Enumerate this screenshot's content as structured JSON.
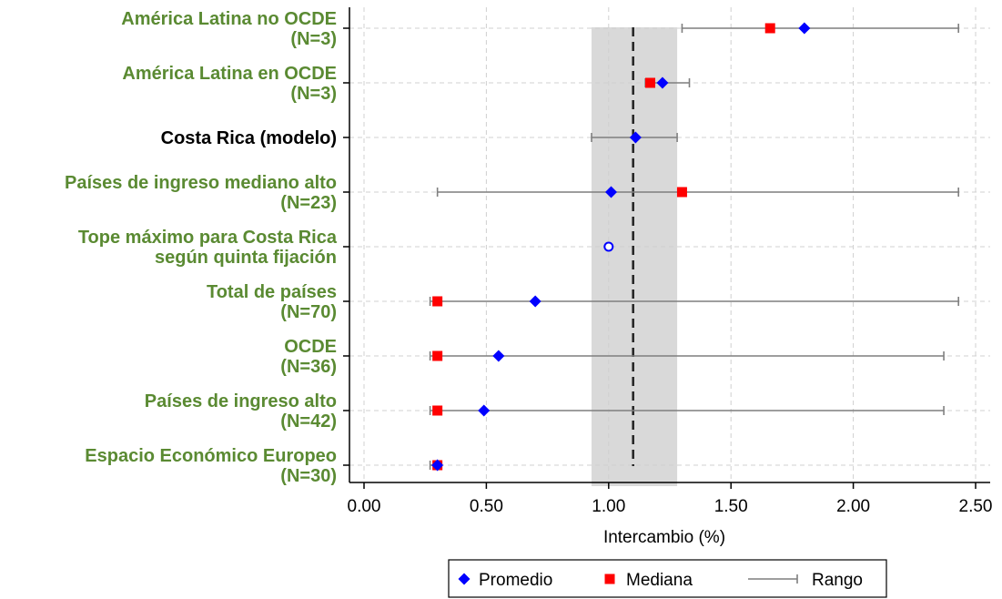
{
  "chart_data": {
    "type": "scatter",
    "orientation": "horizontal-dot-range",
    "xlabel": "Intercambio (%)",
    "xlim": [
      0.0,
      2.5
    ],
    "xticks": [
      "0.00",
      "0.50",
      "1.00",
      "1.50",
      "2.00",
      "2.50"
    ],
    "xtick_values": [
      0,
      0.5,
      1.0,
      1.5,
      2.0,
      2.5
    ],
    "grid": true,
    "reference_line": 1.1,
    "shaded_band": [
      0.93,
      1.28
    ],
    "colors": {
      "promedio": "#0000ff",
      "mediana": "#ff0000",
      "rango": "#7f7f7f",
      "band": "#d9d9d9",
      "label": "#5a8a32",
      "label_highlight": "#000000"
    },
    "categories": [
      {
        "lines": [
          "América Latina no OCDE",
          "(N=3)"
        ],
        "highlight": false,
        "promedio": 1.8,
        "mediana": 1.66,
        "range": [
          1.3,
          2.43
        ]
      },
      {
        "lines": [
          "América Latina en OCDE",
          "(N=3)"
        ],
        "highlight": false,
        "promedio": 1.22,
        "mediana": 1.17,
        "range": [
          1.15,
          1.33
        ]
      },
      {
        "lines": [
          "Costa Rica (modelo)"
        ],
        "highlight": true,
        "promedio": 1.11,
        "mediana": null,
        "range": [
          0.93,
          1.28
        ]
      },
      {
        "lines": [
          "Países de ingreso mediano alto",
          "(N=23)"
        ],
        "highlight": false,
        "promedio": 1.01,
        "mediana": 1.3,
        "range": [
          0.3,
          2.43
        ]
      },
      {
        "lines": [
          "Tope máximo para Costa Rica",
          "según quinta fijación"
        ],
        "highlight": false,
        "promedio": null,
        "mediana": null,
        "tope": 1.0,
        "range": null
      },
      {
        "lines": [
          "Total de países",
          "(N=70)"
        ],
        "highlight": false,
        "promedio": 0.7,
        "mediana": 0.3,
        "range": [
          0.27,
          2.43
        ]
      },
      {
        "lines": [
          "OCDE",
          "(N=36)"
        ],
        "highlight": false,
        "promedio": 0.55,
        "mediana": 0.3,
        "range": [
          0.27,
          2.37
        ]
      },
      {
        "lines": [
          "Países de ingreso alto",
          "(N=42)"
        ],
        "highlight": false,
        "promedio": 0.49,
        "mediana": 0.3,
        "range": [
          0.27,
          2.37
        ]
      },
      {
        "lines": [
          "Espacio Económico Europeo",
          "(N=30)"
        ],
        "highlight": false,
        "promedio": 0.3,
        "mediana": 0.3,
        "range": [
          0.27,
          0.3
        ]
      }
    ],
    "legend": {
      "position": "bottom",
      "items": [
        {
          "key": "promedio",
          "label": "Promedio",
          "marker": "diamond"
        },
        {
          "key": "mediana",
          "label": "Mediana",
          "marker": "square"
        },
        {
          "key": "rango",
          "label": "Rango",
          "marker": "range"
        }
      ]
    }
  }
}
